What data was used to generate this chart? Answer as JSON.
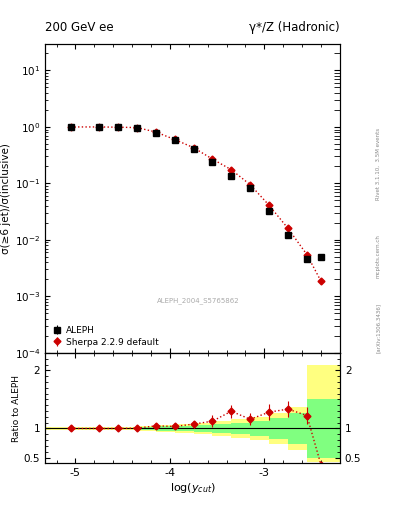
{
  "title_left": "200 GeV ee",
  "title_right": "γ*/Z (Hadronic)",
  "right_label": "Rivet 3.1.10,  3.5M events",
  "watermark": "ALEPH_2004_S5765862",
  "arxiv": "[arXiv:1306.3436]",
  "site": "mcplots.cern.ch",
  "ylabel_main": "σ(≥6 jet)/σ(inclusive)",
  "ylabel_ratio": "Ratio to ALEPH",
  "xlabel": "log($y_{cut}$)",
  "xlim": [
    -5.32,
    -2.2
  ],
  "ylim_main": [
    0.0001,
    30
  ],
  "ylim_ratio": [
    0.4,
    2.3
  ],
  "aleph_x": [
    -5.05,
    -4.75,
    -4.55,
    -4.35,
    -4.15,
    -3.95,
    -3.75,
    -3.55,
    -3.35,
    -3.15,
    -2.95,
    -2.75,
    -2.55,
    -2.4
  ],
  "aleph_y": [
    1.0,
    1.0,
    0.99,
    0.97,
    0.78,
    0.58,
    0.4,
    0.24,
    0.135,
    0.082,
    0.032,
    0.012,
    0.0045,
    0.005
  ],
  "aleph_yerr": [
    0.01,
    0.01,
    0.01,
    0.02,
    0.03,
    0.02,
    0.02,
    0.02,
    0.01,
    0.006,
    0.003,
    0.001,
    0.0005,
    0.0005
  ],
  "sherpa_x": [
    -5.05,
    -4.75,
    -4.55,
    -4.35,
    -4.15,
    -3.95,
    -3.75,
    -3.55,
    -3.35,
    -3.15,
    -2.95,
    -2.75,
    -2.55,
    -2.4
  ],
  "sherpa_y": [
    1.0,
    1.0,
    0.99,
    0.975,
    0.815,
    0.6,
    0.43,
    0.27,
    0.175,
    0.095,
    0.041,
    0.016,
    0.0055,
    0.00185
  ],
  "sherpa_yerr": [
    0.005,
    0.005,
    0.005,
    0.008,
    0.01,
    0.01,
    0.01,
    0.01,
    0.008,
    0.005,
    0.002,
    0.001,
    0.0003,
    0.0001
  ],
  "color_sherpa": "#cc0000",
  "color_aleph": "#000000",
  "color_green": "#80ff80",
  "color_yellow": "#ffff80",
  "xticks": [
    -5,
    -4,
    -3
  ],
  "xtick_labels": [
    "-5",
    "-4",
    "-3"
  ],
  "band_x_edges": [
    -5.32,
    -5.05,
    -4.75,
    -4.55,
    -4.35,
    -4.15,
    -3.95,
    -3.75,
    -3.55,
    -3.35,
    -3.15,
    -2.95,
    -2.75,
    -2.55,
    -2.2
  ],
  "green_lo": [
    0.985,
    0.985,
    0.988,
    0.985,
    0.975,
    0.965,
    0.955,
    0.94,
    0.92,
    0.9,
    0.87,
    0.82,
    0.74,
    0.5
  ],
  "green_hi": [
    1.015,
    1.015,
    1.012,
    1.015,
    1.025,
    1.035,
    1.045,
    1.06,
    1.08,
    1.1,
    1.13,
    1.18,
    1.26,
    1.5
  ],
  "yellow_lo": [
    0.97,
    0.97,
    0.975,
    0.97,
    0.955,
    0.94,
    0.92,
    0.9,
    0.87,
    0.84,
    0.8,
    0.74,
    0.63,
    0.42
  ],
  "yellow_hi": [
    1.03,
    1.03,
    1.025,
    1.03,
    1.045,
    1.06,
    1.08,
    1.1,
    1.13,
    1.16,
    1.2,
    1.26,
    1.37,
    2.1
  ]
}
